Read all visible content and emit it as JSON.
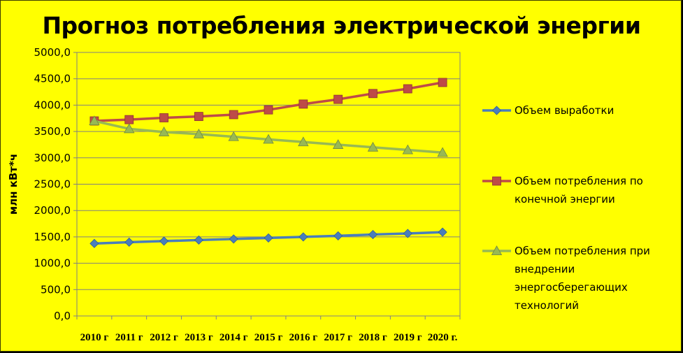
{
  "chart_data": {
    "type": "line",
    "title": "Прогноз потребления электрической энергии",
    "ylabel": "млн кВт*ч",
    "categories": [
      "2010 г",
      "2011 г",
      "2012 г",
      "2013 г",
      "2014 г",
      "2015 г",
      "2016 г",
      "2017 г",
      "2018 г",
      "2019 г",
      "2020 г."
    ],
    "ylim": [
      0,
      5000
    ],
    "yticks": [
      "0,0",
      "500,0",
      "1000,0",
      "1500,0",
      "2000,0",
      "2500,0",
      "3000,0",
      "3500,0",
      "4000,0",
      "4500,0",
      "5000,0"
    ],
    "grid": true,
    "legend_position": "right",
    "series": [
      {
        "name": "Объем выработки",
        "legend_lines": [
          "Объем выработки"
        ],
        "color": "#4a7ebb",
        "marker": "diamond",
        "values": [
          1375,
          1400,
          1420,
          1440,
          1460,
          1480,
          1500,
          1520,
          1545,
          1565,
          1590
        ]
      },
      {
        "name": "Объем потребления по конечной энергии",
        "legend_lines": [
          "Объем потребления по",
          "конечной энергии"
        ],
        "color": "#be4b48",
        "marker": "square",
        "values": [
          3700,
          3725,
          3760,
          3785,
          3820,
          3910,
          4020,
          4110,
          4220,
          4310,
          4430
        ]
      },
      {
        "name": "Объем потребления при внедрении энергосберегающих технологий",
        "legend_lines": [
          "Объем потребления при",
          "внедрении",
          "энергосберегающих",
          "технологий"
        ],
        "color": "#98b954",
        "marker": "triangle",
        "values": [
          3700,
          3550,
          3490,
          3450,
          3400,
          3350,
          3300,
          3250,
          3200,
          3150,
          3100
        ]
      }
    ]
  }
}
